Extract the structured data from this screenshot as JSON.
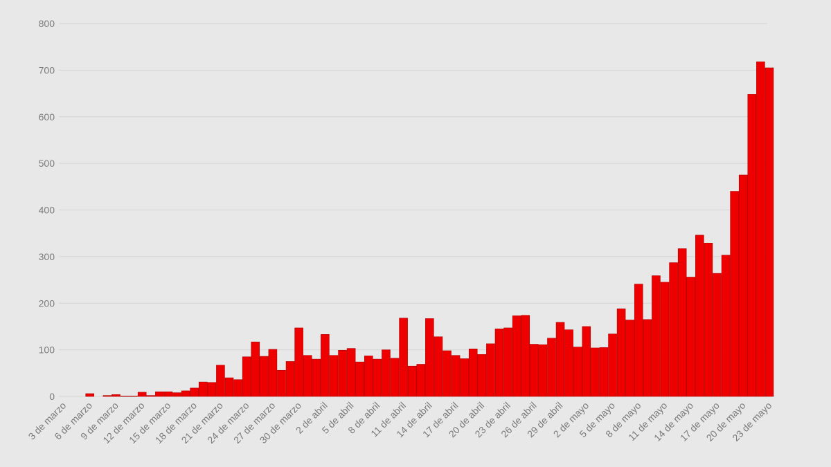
{
  "chart_data": {
    "type": "bar",
    "title": "",
    "xlabel": "",
    "ylabel": "",
    "ylim": [
      0,
      800
    ],
    "yticks": [
      "0",
      "100",
      "200",
      "300",
      "400",
      "500",
      "600",
      "700",
      "800"
    ],
    "grid": true,
    "color": "#ee0000",
    "tick_labels": [
      "3 de marzo",
      "6 de marzo",
      "9 de marzo",
      "12 de marzo",
      "15 de marzo",
      "18 de marzo",
      "21 de marzo",
      "24 de marzo",
      "27 de marzo",
      "30 de marzo",
      "2 de abril",
      "5 de abril",
      "8 de abril",
      "11 de abril",
      "14 de abril",
      "17 de abril",
      "20 de abril",
      "23 de abril",
      "26 de abril",
      "29 de abril",
      "2 de mayo",
      "5 de mayo",
      "8 de mayo",
      "11 de mayo",
      "14 de mayo",
      "17 de mayo",
      "20 de mayo",
      "23 de mayo"
    ],
    "tick_every": 3,
    "values": [
      0,
      0,
      0,
      6,
      0,
      2,
      4,
      1,
      1,
      9,
      2,
      10,
      10,
      8,
      12,
      18,
      31,
      30,
      67,
      40,
      36,
      85,
      117,
      86,
      101,
      56,
      75,
      147,
      88,
      80,
      133,
      88,
      99,
      103,
      74,
      87,
      80,
      100,
      82,
      168,
      65,
      69,
      167,
      128,
      98,
      88,
      81,
      102,
      90,
      113,
      145,
      147,
      173,
      174,
      112,
      111,
      125,
      159,
      143,
      106,
      150,
      104,
      105,
      134,
      188,
      164,
      241,
      165,
      259,
      245,
      287,
      317,
      256,
      346,
      329,
      264,
      303,
      440,
      475,
      648,
      718,
      705
    ]
  }
}
